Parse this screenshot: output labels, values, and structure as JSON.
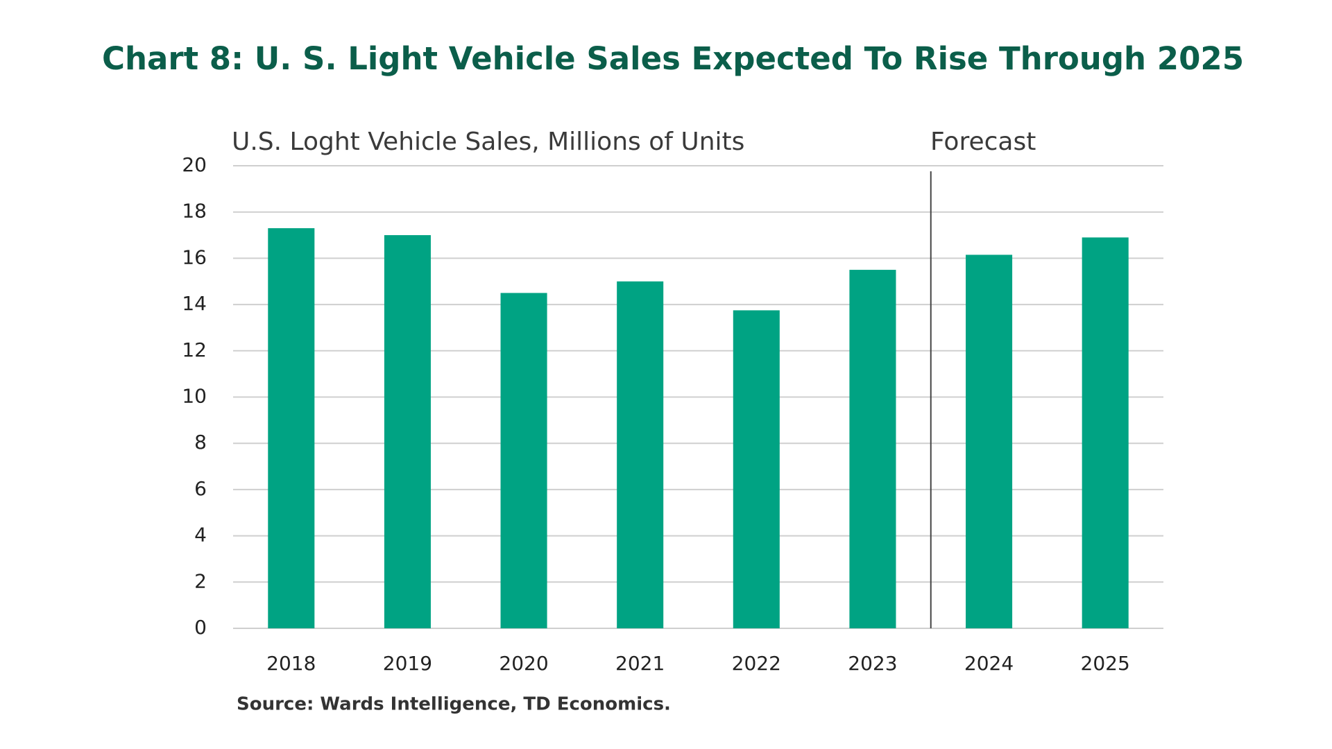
{
  "chart_data": {
    "type": "bar",
    "title": "Chart 8: U. S. Light Vehicle Sales Expected To Rise Through 2025",
    "subtitle": "U.S. Loght Vehicle Sales, Millions of Units",
    "annotation": "Forecast",
    "source": "Source: Wards Intelligence, TD Economics.",
    "categories": [
      "2018",
      "2019",
      "2020",
      "2021",
      "2022",
      "2023",
      "2024",
      "2025"
    ],
    "values": [
      17.3,
      17.0,
      14.5,
      15.0,
      13.75,
      15.5,
      16.15,
      16.9
    ],
    "color": "#00a383",
    "ylim": [
      0,
      20
    ],
    "yticks": [
      0,
      2,
      4,
      6,
      8,
      10,
      12,
      14,
      16,
      18,
      20
    ],
    "grid": true
  }
}
